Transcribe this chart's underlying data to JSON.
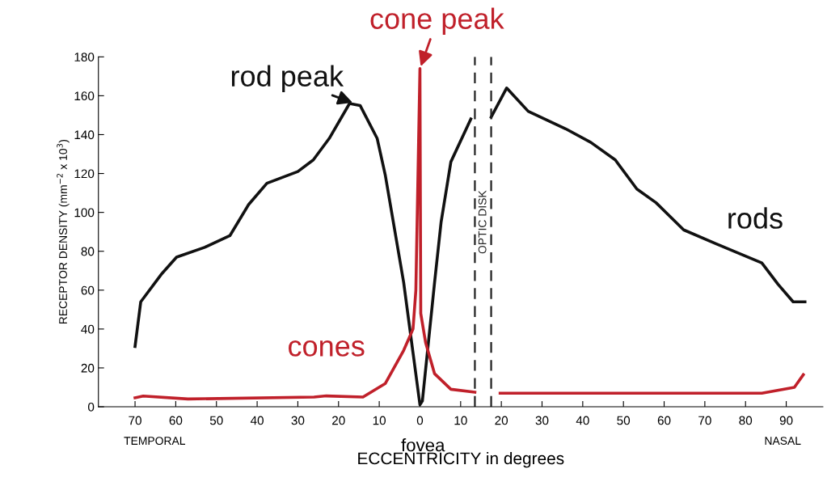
{
  "chart_data": {
    "type": "line",
    "xlabel": "ECCENTRICITY in degrees",
    "ylabel": "RECEPTOR DENSITY (mm$^{−2}$ x 10$^{3}$)",
    "xlim": [
      -79,
      99
    ],
    "ylim": [
      0,
      180
    ],
    "xticks": [
      {
        "value": -70,
        "label": "70"
      },
      {
        "value": -60,
        "label": "60"
      },
      {
        "value": -50,
        "label": "50"
      },
      {
        "value": -40,
        "label": "40"
      },
      {
        "value": -30,
        "label": "30"
      },
      {
        "value": -20,
        "label": "20"
      },
      {
        "value": -10,
        "label": "10"
      },
      0,
      10,
      20,
      30,
      40,
      50,
      60,
      70,
      80,
      90
    ],
    "yticks": [
      0,
      20,
      40,
      60,
      80,
      100,
      120,
      140,
      160,
      180
    ],
    "series": [
      {
        "name": "rods",
        "color": "#111111",
        "x": [
          -70,
          -68.6,
          -63.6,
          -59.8,
          -52.9,
          -46.7,
          -42.1,
          -37.6,
          -30,
          -26.2,
          -22.3,
          -17.3,
          -14.7,
          -10.5,
          -8.5,
          -4,
          0,
          0.6,
          3.6,
          5.2,
          7.6,
          12.5,
          null,
          17.5,
          21.3,
          26.6,
          35.8,
          42,
          48,
          53.3,
          58,
          64.8,
          72.6,
          84,
          88,
          91.7,
          94.6
        ],
        "values": [
          31,
          54,
          68,
          77,
          82,
          88,
          104,
          115,
          121,
          127,
          138,
          156,
          155,
          138,
          119,
          64,
          1,
          3,
          64,
          95,
          126,
          148,
          null,
          149,
          164,
          152,
          143,
          136,
          127,
          112,
          105,
          91,
          84,
          74,
          63,
          54,
          54
        ]
      },
      {
        "name": "cones",
        "color": "#c0202a",
        "x": [
          -70,
          -68,
          -57,
          -26,
          -23,
          -14,
          -8.5,
          -4,
          -1.7,
          -1,
          0,
          0.2,
          1.4,
          3.6,
          7.6,
          13.5,
          null,
          19.7,
          50,
          84,
          92,
          94.2
        ],
        "values": [
          4.6,
          5.5,
          4,
          5,
          5.6,
          5,
          12,
          29,
          40,
          60,
          174,
          48,
          33,
          17,
          9,
          7.5,
          null,
          7,
          7,
          7,
          10,
          16.5
        ]
      }
    ],
    "ref_lines": [
      {
        "axis": "x",
        "value": 13.5,
        "line_style": "dashed"
      },
      {
        "axis": "x",
        "value": 17.5,
        "line_style": "dashed",
        "label": "OPTIC DISK"
      }
    ],
    "annotations": [
      {
        "text": "cone peak",
        "x": 0,
        "y": 174
      },
      {
        "text": "rod peak",
        "x": -16,
        "y": 156
      },
      "fovea",
      "TEMPORAL",
      "NASAL"
    ],
    "grid": false,
    "legend": false,
    "marker": "none",
    "line_style": "solid"
  }
}
